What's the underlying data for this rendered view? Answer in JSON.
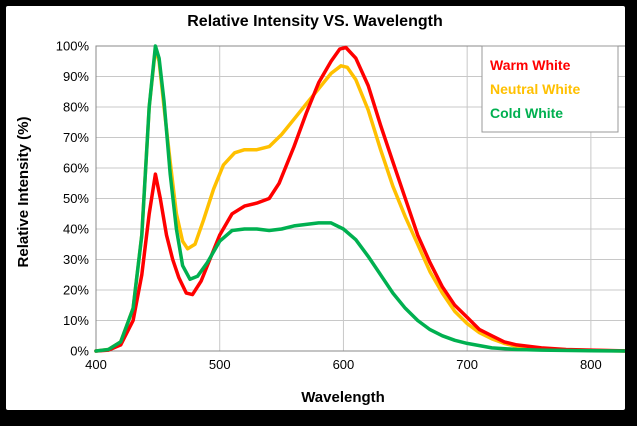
{
  "chart_data": {
    "type": "line",
    "title": "Relative Intensity VS. Wavelength",
    "xlabel": "Wavelength",
    "ylabel": "Relative Intensity (%)",
    "xlim": [
      400,
      830
    ],
    "ylim": [
      0,
      100
    ],
    "x_ticks": [
      400,
      500,
      600,
      700,
      800
    ],
    "y_ticks": [
      0,
      10,
      20,
      30,
      40,
      50,
      60,
      70,
      80,
      90,
      100
    ],
    "y_tick_labels": [
      "0%",
      "10%",
      "20%",
      "30%",
      "40%",
      "50%",
      "60%",
      "70%",
      "80%",
      "90%",
      "100%"
    ],
    "grid": true,
    "legend_position": "top-right",
    "series": [
      {
        "name": "Warm White",
        "color": "#ff0000",
        "points": [
          [
            400,
            0
          ],
          [
            410,
            0.3
          ],
          [
            420,
            2
          ],
          [
            430,
            10
          ],
          [
            437,
            25
          ],
          [
            443,
            45
          ],
          [
            448,
            58
          ],
          [
            452,
            50
          ],
          [
            457,
            38
          ],
          [
            462,
            30
          ],
          [
            467,
            24
          ],
          [
            473,
            19
          ],
          [
            478,
            18.5
          ],
          [
            485,
            23
          ],
          [
            492,
            30
          ],
          [
            500,
            38
          ],
          [
            510,
            45
          ],
          [
            520,
            47.5
          ],
          [
            530,
            48.5
          ],
          [
            540,
            50
          ],
          [
            548,
            55
          ],
          [
            560,
            67
          ],
          [
            570,
            78
          ],
          [
            580,
            88
          ],
          [
            590,
            95
          ],
          [
            597,
            99
          ],
          [
            602,
            99.5
          ],
          [
            610,
            96
          ],
          [
            620,
            87
          ],
          [
            630,
            74
          ],
          [
            640,
            62
          ],
          [
            650,
            50
          ],
          [
            660,
            38
          ],
          [
            670,
            29
          ],
          [
            680,
            21
          ],
          [
            690,
            15
          ],
          [
            700,
            11
          ],
          [
            710,
            7
          ],
          [
            720,
            5
          ],
          [
            730,
            3
          ],
          [
            740,
            2
          ],
          [
            760,
            1
          ],
          [
            780,
            0.5
          ],
          [
            800,
            0.3
          ],
          [
            830,
            0
          ]
        ]
      },
      {
        "name": "Neutral White",
        "color": "#ffc000",
        "points": [
          [
            400,
            0
          ],
          [
            410,
            0.5
          ],
          [
            420,
            3
          ],
          [
            430,
            14
          ],
          [
            437,
            38
          ],
          [
            443,
            80
          ],
          [
            448,
            99
          ],
          [
            451,
            95
          ],
          [
            455,
            80
          ],
          [
            460,
            62
          ],
          [
            465,
            45
          ],
          [
            470,
            36
          ],
          [
            474,
            33.5
          ],
          [
            480,
            35
          ],
          [
            487,
            43
          ],
          [
            495,
            53
          ],
          [
            503,
            61
          ],
          [
            512,
            65
          ],
          [
            520,
            66
          ],
          [
            530,
            66
          ],
          [
            540,
            67
          ],
          [
            550,
            71
          ],
          [
            560,
            76
          ],
          [
            570,
            81
          ],
          [
            580,
            86
          ],
          [
            590,
            91
          ],
          [
            598,
            93.5
          ],
          [
            603,
            93
          ],
          [
            610,
            89
          ],
          [
            620,
            79
          ],
          [
            630,
            66
          ],
          [
            640,
            54
          ],
          [
            650,
            44
          ],
          [
            660,
            35
          ],
          [
            670,
            26
          ],
          [
            680,
            19
          ],
          [
            690,
            13
          ],
          [
            700,
            9
          ],
          [
            710,
            6
          ],
          [
            720,
            4
          ],
          [
            730,
            2.5
          ],
          [
            740,
            1.5
          ],
          [
            760,
            0.8
          ],
          [
            780,
            0.4
          ],
          [
            800,
            0.2
          ],
          [
            830,
            0
          ]
        ]
      },
      {
        "name": "Cold White",
        "color": "#00b050",
        "points": [
          [
            400,
            0
          ],
          [
            410,
            0.5
          ],
          [
            420,
            3
          ],
          [
            430,
            14
          ],
          [
            437,
            38
          ],
          [
            443,
            80
          ],
          [
            448,
            100
          ],
          [
            451,
            96
          ],
          [
            455,
            82
          ],
          [
            460,
            58
          ],
          [
            465,
            40
          ],
          [
            470,
            28
          ],
          [
            476,
            23.5
          ],
          [
            482,
            24.5
          ],
          [
            490,
            29
          ],
          [
            500,
            36
          ],
          [
            510,
            39.5
          ],
          [
            520,
            40
          ],
          [
            530,
            40
          ],
          [
            540,
            39.5
          ],
          [
            550,
            40
          ],
          [
            560,
            41
          ],
          [
            570,
            41.5
          ],
          [
            580,
            42
          ],
          [
            590,
            42
          ],
          [
            600,
            40
          ],
          [
            610,
            36.5
          ],
          [
            620,
            31
          ],
          [
            630,
            25
          ],
          [
            640,
            19
          ],
          [
            650,
            14
          ],
          [
            660,
            10
          ],
          [
            670,
            7
          ],
          [
            680,
            5
          ],
          [
            690,
            3.5
          ],
          [
            700,
            2.5
          ],
          [
            720,
            1
          ],
          [
            740,
            0.5
          ],
          [
            760,
            0.3
          ],
          [
            800,
            0.1
          ],
          [
            830,
            0
          ]
        ]
      }
    ]
  }
}
